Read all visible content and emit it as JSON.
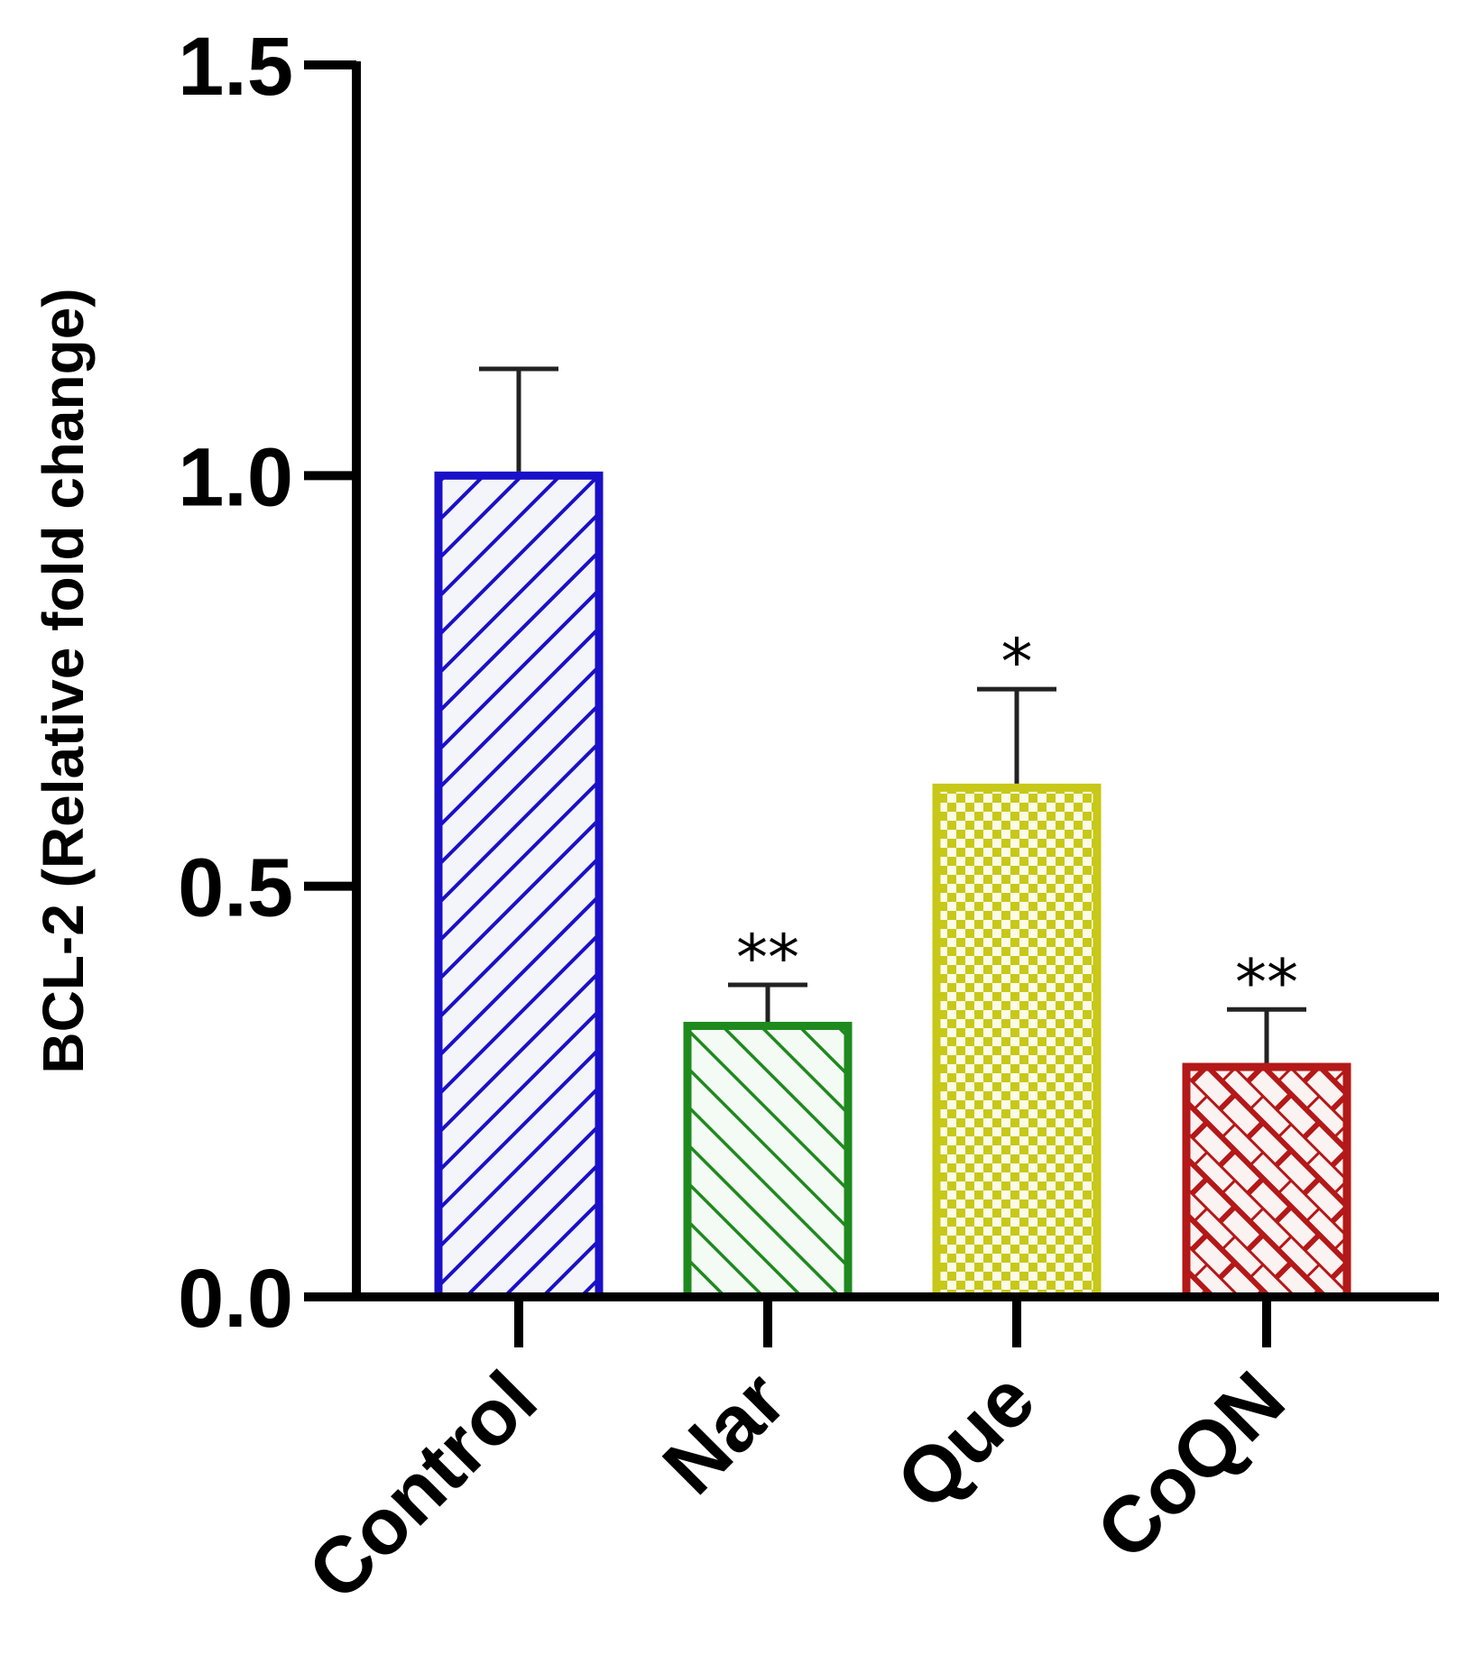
{
  "chart_data": {
    "type": "bar",
    "title": "",
    "xlabel": "",
    "ylabel": "BCL-2 (Relative fold change)",
    "ylim": [
      0,
      1.5
    ],
    "yticks": [
      "0.0",
      "0.5",
      "1.0",
      "1.5"
    ],
    "categories": [
      "Control",
      "Nar",
      "Que",
      "CoQN"
    ],
    "values": [
      1.0,
      0.33,
      0.62,
      0.28
    ],
    "errors": [
      0.13,
      0.05,
      0.12,
      0.07
    ],
    "significance": [
      "",
      "**",
      "*",
      "**"
    ],
    "colors": [
      "#1a10c8",
      "#1e8a1e",
      "#c8c818",
      "#b41818"
    ],
    "patterns": [
      "diagonal-stripes-up",
      "diagonal-stripes-down",
      "checkerboard",
      "brick"
    ],
    "grid": false,
    "legend": "none"
  }
}
